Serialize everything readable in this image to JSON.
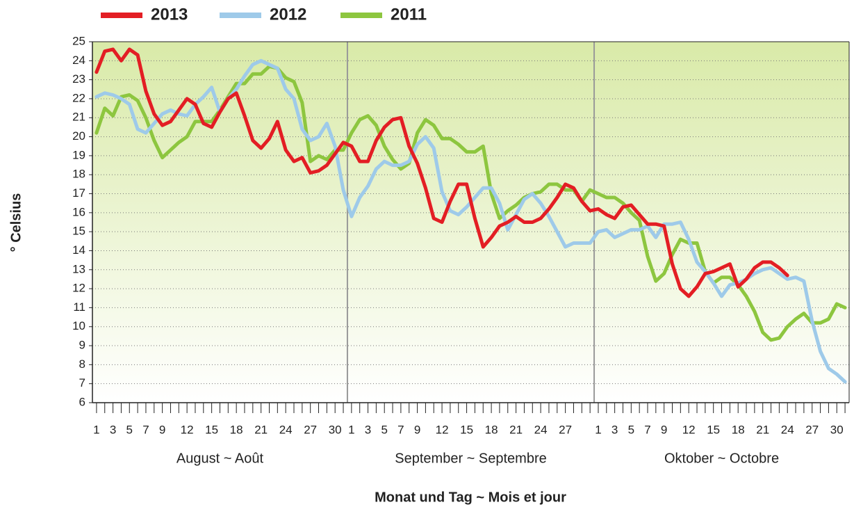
{
  "chart_data": {
    "type": "line",
    "x_label": "Monat und Tag ~ Mois et jour",
    "y_label": "° Celsius",
    "categories": [
      "1",
      null,
      "3",
      null,
      "5",
      null,
      "7",
      null,
      "9",
      null,
      null,
      "12",
      null,
      null,
      "15",
      null,
      null,
      "18",
      null,
      null,
      "21",
      null,
      null,
      "24",
      null,
      null,
      "27",
      null,
      null,
      "30",
      null,
      "1",
      null,
      "3",
      null,
      "5",
      null,
      "7",
      null,
      "9",
      null,
      null,
      "12",
      null,
      null,
      "15",
      null,
      null,
      "18",
      null,
      null,
      "21",
      null,
      null,
      "24",
      null,
      null,
      "27",
      null,
      null,
      null,
      "1",
      null,
      "3",
      null,
      "5",
      null,
      "7",
      null,
      "9",
      null,
      null,
      "12",
      null,
      null,
      "15",
      null,
      null,
      "18",
      null,
      null,
      "21",
      null,
      null,
      "24",
      null,
      null,
      "27",
      null,
      null,
      "30",
      null
    ],
    "months": [
      "August ~ Août",
      "September ~ Septembre",
      "Oktober ~ Octobre"
    ],
    "series": [
      {
        "name": "2013",
        "color": "#e31e24",
        "values": [
          23.4,
          24.5,
          24.6,
          24.0,
          24.6,
          24.3,
          22.4,
          21.2,
          20.6,
          20.8,
          21.4,
          22.0,
          21.7,
          20.7,
          20.5,
          21.3,
          22.0,
          22.3,
          21.1,
          19.8,
          19.4,
          19.9,
          20.8,
          19.3,
          18.7,
          18.9,
          18.1,
          18.2,
          18.5,
          19.1,
          19.7,
          19.5,
          18.7,
          18.7,
          19.8,
          20.5,
          20.9,
          21.0,
          19.5,
          18.6,
          17.3,
          15.7,
          15.5,
          16.6,
          17.5,
          17.5,
          15.7,
          14.2,
          14.7,
          15.3,
          15.5,
          15.8,
          15.5,
          15.5,
          15.7,
          16.2,
          16.8,
          17.5,
          17.3,
          16.6,
          16.1,
          16.2,
          15.9,
          15.7,
          16.3,
          16.4,
          15.9,
          15.4,
          15.4,
          15.3,
          13.3,
          12.0,
          11.6,
          12.1,
          12.8,
          12.9,
          13.1,
          13.3,
          12.1,
          12.5,
          13.1,
          13.4,
          13.4,
          13.1,
          12.7,
          null,
          null,
          null,
          null,
          null,
          null,
          null
        ]
      },
      {
        "name": "2012",
        "color": "#9ecae9",
        "values": [
          22.1,
          22.3,
          22.2,
          22.0,
          21.7,
          20.4,
          20.2,
          20.7,
          21.2,
          21.4,
          21.2,
          21.1,
          21.7,
          22.1,
          22.6,
          21.3,
          22.0,
          22.5,
          23.2,
          23.8,
          24.0,
          23.8,
          23.6,
          22.5,
          22.0,
          20.4,
          19.8,
          20.0,
          20.7,
          19.5,
          17.2,
          15.8,
          16.8,
          17.4,
          18.3,
          18.7,
          18.5,
          18.5,
          18.7,
          19.6,
          20.0,
          19.4,
          17.1,
          16.1,
          15.9,
          16.3,
          16.8,
          17.3,
          17.3,
          16.5,
          15.1,
          15.9,
          16.7,
          17.0,
          16.5,
          15.8,
          15.0,
          14.2,
          14.4,
          14.4,
          14.4,
          15.0,
          15.1,
          14.7,
          14.9,
          15.1,
          15.1,
          15.3,
          14.7,
          15.4,
          15.4,
          15.5,
          14.6,
          13.4,
          12.9,
          12.3,
          11.6,
          12.2,
          12.3,
          12.5,
          12.8,
          13.0,
          13.1,
          12.8,
          12.5,
          12.6,
          12.4,
          10.3,
          8.7,
          7.8,
          7.5,
          7.1
        ]
      },
      {
        "name": "2011",
        "color": "#8dc63f",
        "values": [
          20.2,
          21.5,
          21.1,
          22.1,
          22.2,
          21.9,
          21.0,
          19.8,
          18.9,
          19.3,
          19.7,
          20.0,
          20.8,
          20.8,
          20.8,
          21.4,
          22.1,
          22.8,
          22.8,
          23.3,
          23.3,
          23.7,
          23.6,
          23.1,
          22.9,
          21.8,
          18.7,
          19.0,
          18.8,
          19.3,
          19.3,
          20.2,
          20.9,
          21.1,
          20.6,
          19.5,
          18.8,
          18.3,
          18.6,
          20.2,
          20.9,
          20.6,
          19.9,
          19.9,
          19.6,
          19.2,
          19.2,
          19.5,
          17.0,
          15.7,
          16.1,
          16.4,
          16.8,
          17.0,
          17.1,
          17.5,
          17.5,
          17.2,
          17.2,
          16.6,
          17.2,
          17.0,
          16.8,
          16.8,
          16.5,
          16.0,
          15.6,
          13.7,
          12.4,
          12.8,
          13.8,
          14.6,
          14.4,
          14.4,
          12.9,
          12.3,
          12.6,
          12.6,
          12.2,
          11.6,
          10.8,
          9.7,
          9.3,
          9.4,
          10.0,
          10.4,
          10.7,
          10.2,
          10.2,
          10.4,
          11.2,
          11.0
        ]
      }
    ],
    "ylim": [
      6,
      25
    ],
    "yticks": [
      6,
      7,
      8,
      9,
      10,
      11,
      12,
      13,
      14,
      15,
      16,
      17,
      18,
      19,
      20,
      21,
      22,
      23,
      24,
      25
    ],
    "grid": true
  }
}
